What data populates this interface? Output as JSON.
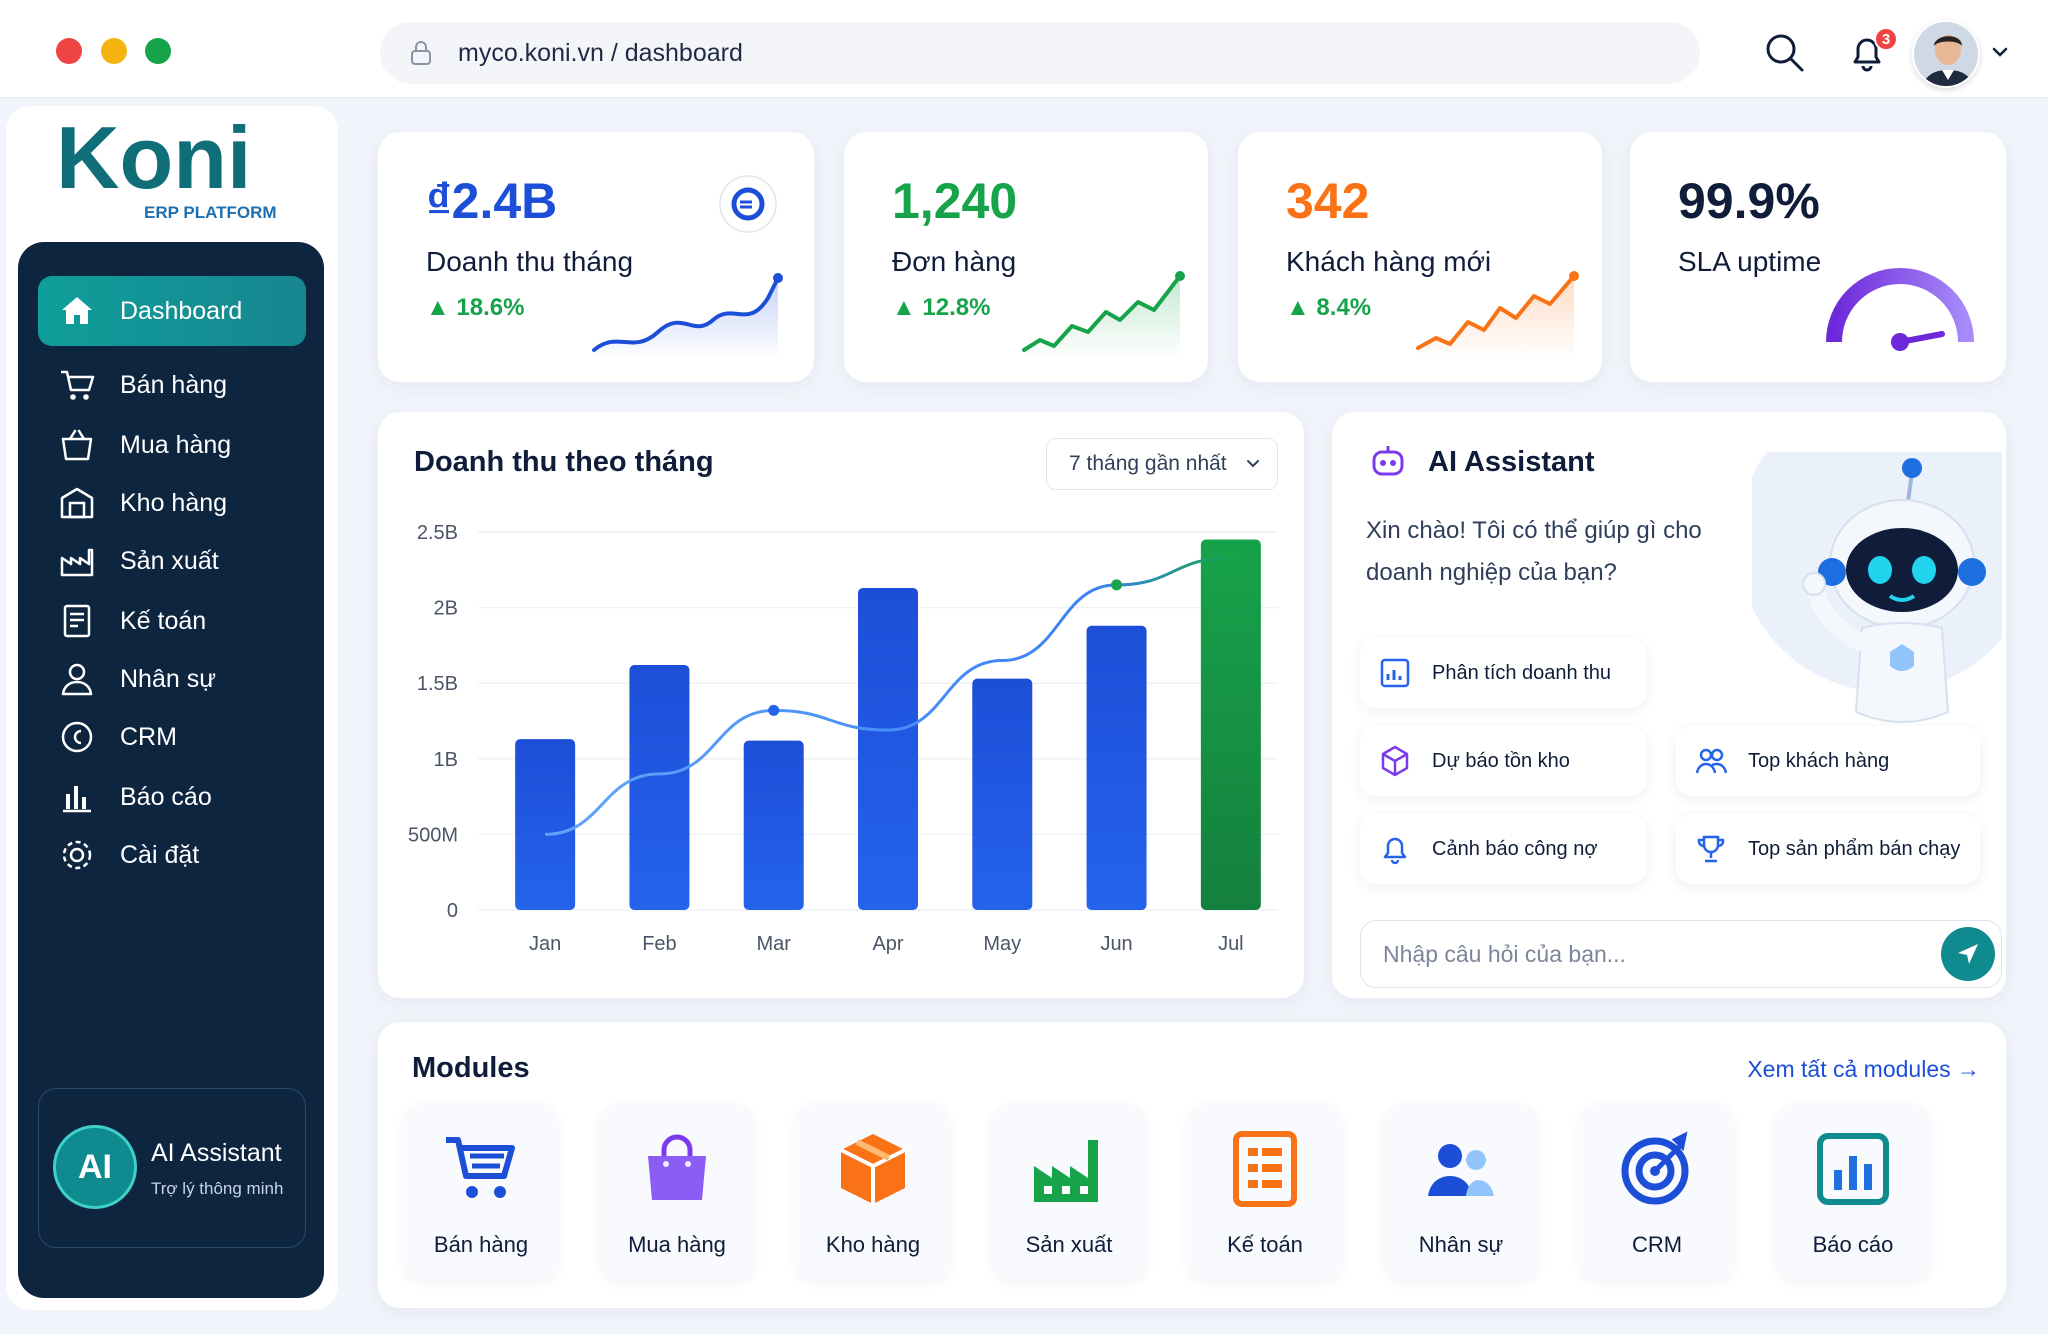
{
  "browser": {
    "url": "myco.koni.vn / dashboard",
    "notification_count": "3"
  },
  "brand": {
    "name": "Koni",
    "tagline": "ERP PLATFORM",
    "colors": {
      "primary": "#0f8a8e",
      "sidebar": "#0e2540",
      "blue": "#1d4ed8",
      "green": "#16a34a",
      "orange": "#f97316"
    }
  },
  "sidebar": {
    "items": [
      {
        "label": "Dashboard",
        "icon": "home-icon"
      },
      {
        "label": "Bán hàng",
        "icon": "cart-icon"
      },
      {
        "label": "Mua hàng",
        "icon": "basket-icon"
      },
      {
        "label": "Kho hàng",
        "icon": "warehouse-icon"
      },
      {
        "label": "Sản xuất",
        "icon": "factory-icon"
      },
      {
        "label": "Kế toán",
        "icon": "ledger-icon"
      },
      {
        "label": "Nhân sự",
        "icon": "person-icon"
      },
      {
        "label": "CRM",
        "icon": "crm-icon"
      },
      {
        "label": "Báo cáo",
        "icon": "bar-chart-icon"
      },
      {
        "label": "Cài đặt",
        "icon": "gear-icon"
      }
    ],
    "assistant": {
      "badge": "AI",
      "title": "AI Assistant",
      "subtitle": "Trợ lý thông minh"
    }
  },
  "stats": [
    {
      "value": "₫2.4B",
      "label": "Doanh thu tháng",
      "change": "▲ 18.6%",
      "color": "#1d4ed8"
    },
    {
      "value": "1,240",
      "label": "Đơn hàng",
      "change": "▲ 12.8%",
      "color": "#16a34a"
    },
    {
      "value": "342",
      "label": "Khách hàng mới",
      "change": "▲ 8.4%",
      "color": "#f97316"
    },
    {
      "value": "99.9%",
      "label": "SLA uptime",
      "change": "",
      "color": "#0f1d3a"
    }
  ],
  "revenue_chart": {
    "title": "Doanh thu theo tháng",
    "range_select": "7 tháng gần nhất"
  },
  "chart_data": {
    "type": "bar",
    "title": "Doanh thu theo tháng",
    "categories": [
      "Jan",
      "Feb",
      "Mar",
      "Apr",
      "May",
      "Jun",
      "Jul"
    ],
    "y_tick_labels": [
      "0",
      "500M",
      "1B",
      "1.5B",
      "2B",
      "2.5B"
    ],
    "ylim": [
      0,
      2.5
    ],
    "series": [
      {
        "type": "bar",
        "values": [
          1.13,
          1.62,
          1.12,
          2.13,
          1.53,
          1.88,
          2.45
        ],
        "colors": [
          "#1d4ed8",
          "#1d4ed8",
          "#1d4ed8",
          "#1d4ed8",
          "#1d4ed8",
          "#1d4ed8",
          "#16a34a"
        ]
      },
      {
        "type": "line",
        "values": [
          0.5,
          0.9,
          1.32,
          1.19,
          1.65,
          2.15,
          2.33
        ]
      }
    ],
    "grid": true,
    "legend": "none"
  },
  "assistant": {
    "title": "AI Assistant",
    "greeting": "Xin chào! Tôi có thể giúp gì cho doanh nghiệp của bạn?",
    "chips": [
      "Phân tích doanh thu",
      "Dự báo tồn kho",
      "Top khách hàng",
      "Cảnh báo công nợ",
      "Top sản phẩm bán chạy"
    ],
    "input_placeholder": "Nhập câu hỏi của bạn..."
  },
  "modules": {
    "title": "Modules",
    "view_all": "Xem tất cả modules →",
    "items": [
      {
        "label": "Bán hàng",
        "icon": "cart-icon"
      },
      {
        "label": "Mua hàng",
        "icon": "shopping-bag-icon"
      },
      {
        "label": "Kho hàng",
        "icon": "box-icon"
      },
      {
        "label": "Sản xuất",
        "icon": "factory-icon"
      },
      {
        "label": "Kế toán",
        "icon": "calculator-icon"
      },
      {
        "label": "Nhân sự",
        "icon": "people-icon"
      },
      {
        "label": "CRM",
        "icon": "target-icon"
      },
      {
        "label": "Báo cáo",
        "icon": "report-icon"
      }
    ]
  }
}
